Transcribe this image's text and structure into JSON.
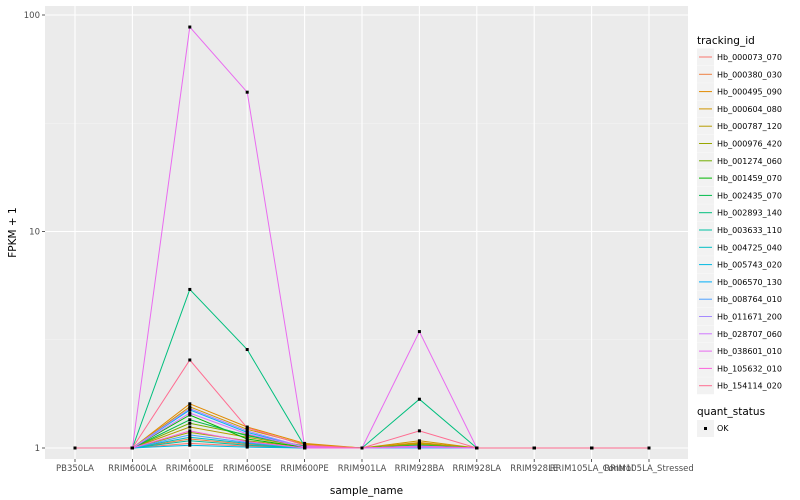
{
  "chart_data": {
    "type": "line",
    "title": "",
    "xlabel": "sample_name",
    "ylabel": "FPKM + 1",
    "y_scale": "log10",
    "ylim": [
      1,
      100
    ],
    "y_ticks": [
      1,
      10,
      100
    ],
    "y_tick_labels": [
      "1",
      "10",
      "100"
    ],
    "grid": true,
    "panel_background": "#ebebeb",
    "categories": [
      "PB350LA",
      "RRIM600LA",
      "RRIM600LE",
      "RRIM600SE",
      "RRIM600PE",
      "RRIM901LA",
      "RRIM928BA",
      "RRIM928LA",
      "RRIM928LE",
      "RRIM105LA_Control",
      "RRIM105LA_Stressed"
    ],
    "legend": {
      "placement": "right",
      "color_title": "tracking_id",
      "shape_title": "quant_status",
      "shape_label": "OK"
    },
    "series": [
      {
        "name": "Hb_000073_070",
        "color": "#F8766D",
        "values": [
          1,
          1,
          1.05,
          1.02,
          1,
          1,
          1.05,
          1,
          1,
          1,
          1
        ]
      },
      {
        "name": "Hb_000380_030",
        "color": "#EE8043",
        "values": [
          1,
          1,
          1.1,
          1.04,
          1,
          1,
          1.02,
          1,
          1,
          1,
          1
        ]
      },
      {
        "name": "Hb_000495_090",
        "color": "#E18A00",
        "values": [
          1,
          1,
          1.6,
          1.25,
          1.05,
          1,
          1.06,
          1,
          1,
          1,
          1
        ]
      },
      {
        "name": "Hb_000604_080",
        "color": "#CF9400",
        "values": [
          1,
          1,
          1.55,
          1.22,
          1.04,
          1,
          1.08,
          1,
          1,
          1,
          1
        ]
      },
      {
        "name": "Hb_000787_120",
        "color": "#B69D00",
        "values": [
          1,
          1,
          1.25,
          1.12,
          1.02,
          1,
          1.05,
          1,
          1,
          1,
          1
        ]
      },
      {
        "name": "Hb_000976_420",
        "color": "#98A600",
        "values": [
          1,
          1,
          1.18,
          1.08,
          1.01,
          1,
          1.04,
          1,
          1,
          1,
          1
        ]
      },
      {
        "name": "Hb_001274_060",
        "color": "#72AE00",
        "values": [
          1,
          1,
          1.3,
          1.15,
          1.02,
          1,
          1.03,
          1,
          1,
          1,
          1
        ]
      },
      {
        "name": "Hb_001459_070",
        "color": "#00B600",
        "values": [
          1,
          1,
          1.42,
          1.1,
          1.01,
          1,
          1.02,
          1,
          1,
          1,
          1
        ]
      },
      {
        "name": "Hb_002435_070",
        "color": "#00BB4B",
        "values": [
          1,
          1,
          1.35,
          1.14,
          1.02,
          1,
          1.03,
          1,
          1,
          1,
          1
        ]
      },
      {
        "name": "Hb_002893_140",
        "color": "#00BF7D",
        "values": [
          1,
          1,
          5.4,
          2.85,
          1.02,
          1,
          1.68,
          1,
          1,
          1,
          1
        ]
      },
      {
        "name": "Hb_003633_110",
        "color": "#00C0A3",
        "values": [
          1,
          1,
          1.08,
          1.03,
          1,
          1,
          1.01,
          1,
          1,
          1,
          1
        ]
      },
      {
        "name": "Hb_004725_040",
        "color": "#00BDC4",
        "values": [
          1,
          1,
          1.12,
          1.05,
          1,
          1,
          1.01,
          1,
          1,
          1,
          1
        ]
      },
      {
        "name": "Hb_005743_020",
        "color": "#00B8E1",
        "values": [
          1,
          1,
          1.03,
          1.01,
          1,
          1,
          1.01,
          1,
          1,
          1,
          1
        ]
      },
      {
        "name": "Hb_006570_130",
        "color": "#00AEF8",
        "values": [
          1,
          1,
          1.5,
          1.18,
          1.01,
          1,
          1.02,
          1,
          1,
          1,
          1
        ]
      },
      {
        "name": "Hb_008764_010",
        "color": "#4DA0FF",
        "values": [
          1,
          1,
          1.15,
          1.06,
          1,
          1,
          1,
          1,
          1,
          1,
          1
        ]
      },
      {
        "name": "Hb_011671_200",
        "color": "#A58AFF",
        "values": [
          1,
          1,
          1.52,
          1.2,
          1.01,
          1,
          1.02,
          1,
          1,
          1,
          1
        ]
      },
      {
        "name": "Hb_028707_060",
        "color": "#D077FF",
        "values": [
          1,
          1,
          1.45,
          1.16,
          1.01,
          1,
          1.01,
          1,
          1,
          1,
          1
        ]
      },
      {
        "name": "Hb_038601_010",
        "color": "#E96BF0",
        "values": [
          1,
          1,
          88,
          44,
          1.02,
          1,
          3.45,
          1,
          1,
          1,
          1
        ]
      },
      {
        "name": "Hb_105632_010",
        "color": "#FA62DB",
        "values": [
          1,
          1,
          1.2,
          1.07,
          1,
          1,
          1.02,
          1,
          1,
          1,
          1
        ]
      },
      {
        "name": "Hb_154114_020",
        "color": "#FF6C91",
        "values": [
          1,
          1,
          2.55,
          1.24,
          1.03,
          1,
          1.2,
          1,
          1,
          1,
          1
        ]
      }
    ]
  }
}
